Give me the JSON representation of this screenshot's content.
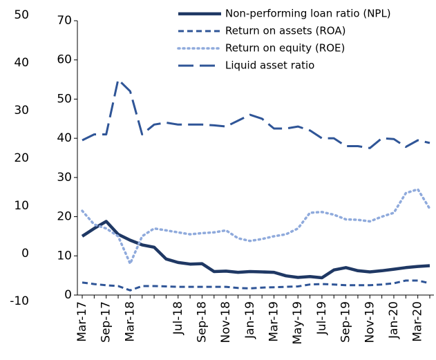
{
  "chart_data": {
    "type": "line",
    "categories": [
      "Mar-17",
      null,
      "Sep-17",
      null,
      "Mar-18",
      null,
      null,
      null,
      "Jul-18",
      null,
      "Sep-18",
      null,
      "Nov-18",
      null,
      "Jan-19",
      null,
      "Mar-19",
      null,
      "May-19",
      null,
      "Jul-19",
      null,
      "Sep-19",
      null,
      "Nov-19",
      null,
      "Jan-20",
      null,
      "Mar-20",
      null
    ],
    "series": [
      {
        "name": "Non-performing loan ratio (NPL)",
        "color": "#1f3864",
        "dash": "solid",
        "values": [
          15,
          17,
          18.8,
          15.5,
          14,
          12.8,
          12.2,
          9.2,
          8.3,
          7.9,
          8,
          6,
          6.1,
          5.8,
          6,
          5.9,
          5.8,
          4.9,
          4.5,
          4.7,
          4.4,
          6.4,
          7,
          6.2,
          5.9,
          6.2,
          6.6,
          7,
          7.3,
          7.5
        ]
      },
      {
        "name": "Return on assets (ROA)",
        "color": "#2f5597",
        "dash": "dashed",
        "values": [
          3.2,
          2.8,
          2.5,
          2.3,
          1.2,
          2.3,
          2.3,
          2.2,
          2.1,
          2.1,
          2.1,
          2.1,
          2.1,
          1.8,
          1.7,
          1.9,
          2,
          2.1,
          2.2,
          2.7,
          2.8,
          2.7,
          2.5,
          2.5,
          2.5,
          2.7,
          3,
          3.7,
          3.7,
          3
        ]
      },
      {
        "name": "Return on equity (ROE)",
        "color": "#8faadc",
        "dash": "dotted",
        "values": [
          21.5,
          18,
          17,
          15,
          8,
          15,
          17,
          16.5,
          16,
          15.5,
          15.8,
          16,
          16.5,
          14.5,
          13.8,
          14.3,
          15,
          15.5,
          17,
          21,
          21.2,
          20.5,
          19.3,
          19.2,
          18.8,
          20,
          21,
          26,
          27,
          22
        ]
      },
      {
        "name": "Liquid asset ratio",
        "color": "#2f5597",
        "dash": "longdash",
        "values": [
          39.5,
          41,
          41,
          55,
          52,
          41,
          43.5,
          44,
          43.5,
          43.5,
          43.5,
          43.3,
          43,
          44.5,
          46,
          45,
          42.5,
          42.5,
          43,
          42,
          40,
          40,
          38,
          38,
          37.5,
          40,
          39.8,
          37.8,
          39.5,
          38.8
        ]
      }
    ],
    "ylim": [
      0,
      70
    ],
    "yticks": [
      0,
      10,
      20,
      30,
      40,
      50,
      60,
      70
    ],
    "y2lim": [
      -10,
      50
    ],
    "y2ticks": [
      -10,
      0,
      10,
      20,
      30,
      40,
      50
    ],
    "legend": "upper right"
  }
}
